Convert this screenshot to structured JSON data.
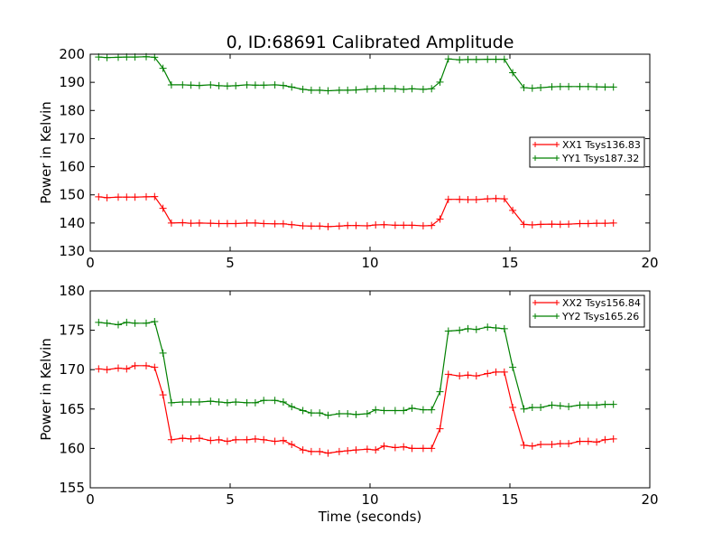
{
  "chart_data": [
    {
      "type": "line",
      "title": "0, ID:68691 Calibrated Amplitude",
      "xlabel": "",
      "ylabel": "Power in Kelvin",
      "xlim": [
        0,
        20
      ],
      "ylim": [
        130,
        200
      ],
      "xticks": [
        "0",
        "5",
        "10",
        "15",
        "20"
      ],
      "yticks": [
        "130",
        "140",
        "150",
        "160",
        "170",
        "180",
        "190",
        "200"
      ],
      "grid": false,
      "legend_position": "right",
      "x": [
        0.3,
        0.6,
        1.0,
        1.3,
        1.6,
        2.0,
        2.3,
        2.6,
        2.9,
        3.3,
        3.6,
        3.9,
        4.3,
        4.6,
        4.9,
        5.2,
        5.6,
        5.9,
        6.2,
        6.6,
        6.9,
        7.2,
        7.6,
        7.9,
        8.2,
        8.5,
        8.9,
        9.2,
        9.5,
        9.9,
        10.2,
        10.5,
        10.9,
        11.2,
        11.5,
        11.9,
        12.2,
        12.5,
        12.8,
        13.2,
        13.5,
        13.8,
        14.2,
        14.5,
        14.8,
        15.1,
        15.5,
        15.8,
        16.1,
        16.5,
        16.8,
        17.1,
        17.5,
        17.8,
        18.1,
        18.4,
        18.7
      ],
      "series": [
        {
          "name": "XX1 Tsys136.83",
          "color": "#ff0000",
          "values": [
            149.3,
            149.0,
            149.2,
            149.2,
            149.2,
            149.3,
            149.4,
            145.2,
            140.0,
            140.1,
            139.9,
            140.0,
            139.9,
            139.8,
            139.8,
            139.8,
            140.0,
            140.0,
            139.8,
            139.7,
            139.7,
            139.4,
            139.0,
            138.9,
            138.9,
            138.7,
            138.9,
            139.1,
            139.1,
            139.0,
            139.3,
            139.4,
            139.2,
            139.2,
            139.2,
            139.0,
            139.1,
            141.4,
            148.4,
            148.4,
            148.3,
            148.3,
            148.6,
            148.7,
            148.6,
            144.5,
            139.5,
            139.3,
            139.5,
            139.6,
            139.5,
            139.6,
            139.8,
            139.8,
            139.9,
            139.9,
            140.0
          ]
        },
        {
          "name": "YY1 Tsys187.32",
          "color": "#008000",
          "values": [
            199.0,
            198.8,
            198.9,
            199.0,
            199.0,
            199.1,
            198.9,
            195.0,
            189.1,
            189.1,
            189.0,
            188.9,
            189.1,
            188.8,
            188.7,
            188.8,
            189.1,
            189.0,
            189.0,
            189.1,
            188.9,
            188.3,
            187.5,
            187.2,
            187.2,
            187.0,
            187.2,
            187.2,
            187.3,
            187.6,
            187.7,
            187.8,
            187.7,
            187.5,
            187.7,
            187.5,
            187.7,
            190.1,
            198.3,
            198.0,
            198.1,
            198.1,
            198.2,
            198.2,
            198.2,
            193.4,
            188.1,
            187.9,
            188.1,
            188.4,
            188.5,
            188.5,
            188.5,
            188.5,
            188.4,
            188.3,
            188.3
          ]
        }
      ]
    },
    {
      "type": "line",
      "title": "",
      "xlabel": "Time (seconds)",
      "ylabel": "Power in Kelvin",
      "xlim": [
        0,
        20
      ],
      "ylim": [
        155,
        180
      ],
      "xticks": [
        "0",
        "5",
        "10",
        "15",
        "20"
      ],
      "yticks": [
        "155",
        "160",
        "165",
        "170",
        "175",
        "180"
      ],
      "grid": false,
      "legend_position": "upper right",
      "x": [
        0.3,
        0.6,
        1.0,
        1.3,
        1.6,
        2.0,
        2.3,
        2.6,
        2.9,
        3.3,
        3.6,
        3.9,
        4.3,
        4.6,
        4.9,
        5.2,
        5.6,
        5.9,
        6.2,
        6.6,
        6.9,
        7.2,
        7.6,
        7.9,
        8.2,
        8.5,
        8.9,
        9.2,
        9.5,
        9.9,
        10.2,
        10.5,
        10.9,
        11.2,
        11.5,
        11.9,
        12.2,
        12.5,
        12.8,
        13.2,
        13.5,
        13.8,
        14.2,
        14.5,
        14.8,
        15.1,
        15.5,
        15.8,
        16.1,
        16.5,
        16.8,
        17.1,
        17.5,
        17.8,
        18.1,
        18.4,
        18.7
      ],
      "series": [
        {
          "name": "XX2 Tsys156.84",
          "color": "#ff0000",
          "values": [
            170.1,
            170.0,
            170.2,
            170.1,
            170.5,
            170.5,
            170.3,
            166.8,
            161.1,
            161.3,
            161.2,
            161.3,
            161.0,
            161.1,
            160.9,
            161.1,
            161.1,
            161.2,
            161.1,
            160.9,
            161.0,
            160.5,
            159.8,
            159.6,
            159.6,
            159.4,
            159.6,
            159.7,
            159.8,
            159.9,
            159.8,
            160.3,
            160.1,
            160.2,
            160.0,
            160.0,
            160.0,
            162.5,
            169.4,
            169.2,
            169.3,
            169.2,
            169.5,
            169.7,
            169.7,
            165.2,
            160.4,
            160.3,
            160.5,
            160.5,
            160.6,
            160.6,
            160.9,
            160.9,
            160.8,
            161.1,
            161.2
          ]
        },
        {
          "name": "YY2 Tsys165.26",
          "color": "#008000",
          "values": [
            176.0,
            175.9,
            175.7,
            176.0,
            175.9,
            175.9,
            176.1,
            172.1,
            165.8,
            165.9,
            165.9,
            165.9,
            166.0,
            165.9,
            165.8,
            165.9,
            165.8,
            165.8,
            166.1,
            166.1,
            165.9,
            165.3,
            164.8,
            164.5,
            164.5,
            164.2,
            164.4,
            164.4,
            164.3,
            164.4,
            164.9,
            164.8,
            164.8,
            164.8,
            165.1,
            164.9,
            164.9,
            167.2,
            174.9,
            175.0,
            175.2,
            175.1,
            175.4,
            175.3,
            175.2,
            170.3,
            165.0,
            165.2,
            165.2,
            165.5,
            165.4,
            165.3,
            165.5,
            165.5,
            165.5,
            165.6,
            165.6
          ]
        }
      ]
    }
  ]
}
